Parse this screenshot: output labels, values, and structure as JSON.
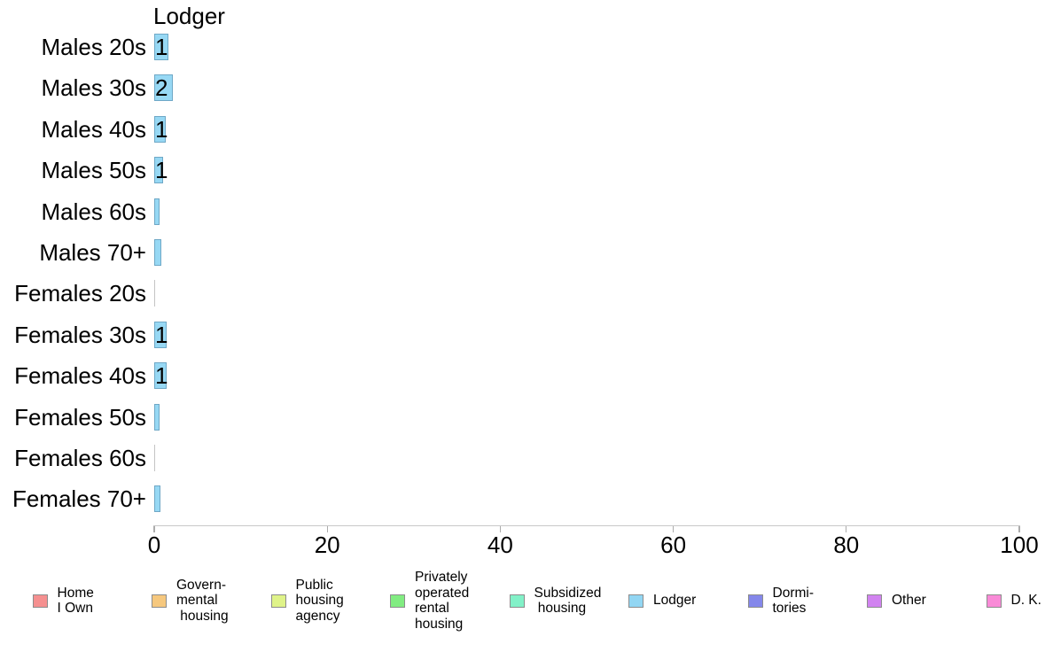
{
  "chart_data": {
    "type": "bar",
    "orientation": "horizontal",
    "title": "Lodger",
    "categories": [
      "Males 20s",
      "Males 30s",
      "Males 40s",
      "Males 50s",
      "Males 60s",
      "Males 70+",
      "Females 20s",
      "Females 30s",
      "Females 40s",
      "Females 50s",
      "Females 60s",
      "Females 70+"
    ],
    "series": [
      {
        "name": "Lodger",
        "values": [
          1.4,
          1.9,
          1.1,
          0.8,
          0.4,
          0.6,
          0,
          1.2,
          1.2,
          0.4,
          0,
          0.5
        ],
        "labels": [
          "1",
          "2",
          "1",
          "1",
          "",
          "",
          "",
          "1",
          "1",
          "",
          "",
          ""
        ]
      }
    ],
    "xlabel": "",
    "ylabel": "",
    "xlim": [
      0,
      100
    ],
    "x_ticks": [
      0,
      20,
      40,
      60,
      80,
      100
    ],
    "x_tick_labels": [
      "0",
      "20",
      "40",
      "60",
      "80",
      "100"
    ],
    "grid": false,
    "legend_position": "bottom",
    "bar_color": "#97D8F4",
    "bar_border_color": "#6FA8C6",
    "zero_bar_color": "#C4C4C4",
    "axis_color": "#C8C8C8"
  },
  "legend": {
    "items": [
      {
        "label": "Home\nI Own",
        "color": "#F59090"
      },
      {
        "label": "Govern-\nmental\n housing",
        "color": "#F6C87E"
      },
      {
        "label": "Public\nhousing\nagency",
        "color": "#DFF389"
      },
      {
        "label": "Privately\noperated\nrental\nhousing",
        "color": "#81EC81"
      },
      {
        "label": "Subsidized\n housing",
        "color": "#82F1C8"
      },
      {
        "label": "Lodger",
        "color": "#92D6F3"
      },
      {
        "label": "Dormi-\ntories",
        "color": "#8487EA"
      },
      {
        "label": "Other",
        "color": "#D183F0"
      },
      {
        "label": "D. K.",
        "color": "#F98AD7"
      }
    ]
  }
}
